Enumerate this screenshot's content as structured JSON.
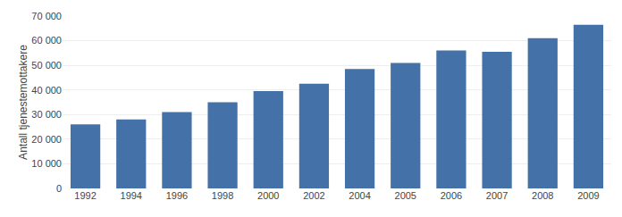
{
  "chart_data": {
    "type": "bar",
    "ylabel": "Antall tjenestemottakere",
    "categories": [
      "1992",
      "1994",
      "1996",
      "1998",
      "2000",
      "2002",
      "2004",
      "2005",
      "2006",
      "2007",
      "2008",
      "2009"
    ],
    "values": [
      26000,
      28000,
      31000,
      35000,
      39500,
      42500,
      48500,
      51000,
      56000,
      55500,
      61000,
      66500
    ],
    "color": "#4472A8",
    "ylim": [
      0,
      70000
    ],
    "yticks": [
      0,
      {
        "value": 10000,
        "label": "10 000"
      },
      {
        "value": 20000,
        "label": "20 000"
      },
      {
        "value": 30000,
        "label": "30 000"
      },
      {
        "value": 40000,
        "label": "40 000"
      },
      {
        "value": 50000,
        "label": "50 000"
      },
      {
        "value": 60000,
        "label": "60 000"
      },
      {
        "value": 70000,
        "label": "70 000"
      }
    ],
    "grid": true
  }
}
